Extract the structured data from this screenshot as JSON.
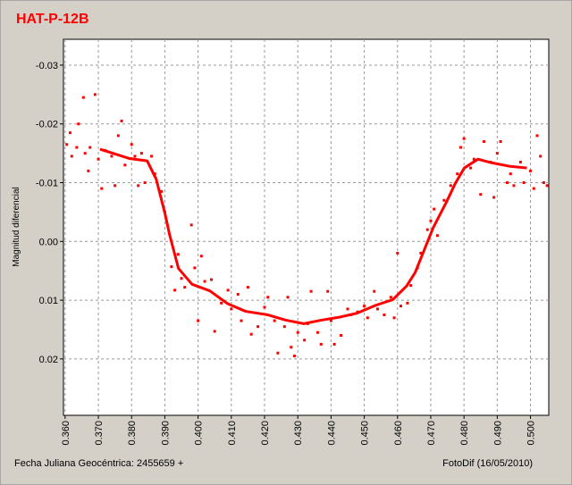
{
  "chart_data": {
    "type": "scatter",
    "title": "HAT-P-12B",
    "ylabel": "Magnitud diferencial",
    "xlabel": "Fecha Juliana Geocéntrica: 2455659 +",
    "footer": "FotoDif (16/05/2010)",
    "xlim": [
      0.3595,
      0.5055
    ],
    "ylim": [
      -0.0344,
      0.0296
    ],
    "y_inverted": true,
    "grid": true,
    "xticks": [
      {
        "value": 0.36,
        "label": "0.360"
      },
      {
        "value": 0.37,
        "label": "0.370"
      },
      {
        "value": 0.38,
        "label": "0.380"
      },
      {
        "value": 0.39,
        "label": "0.390"
      },
      {
        "value": 0.4,
        "label": "0.400"
      },
      {
        "value": 0.41,
        "label": "0.410"
      },
      {
        "value": 0.42,
        "label": "0.420"
      },
      {
        "value": 0.43,
        "label": "0.430"
      },
      {
        "value": 0.44,
        "label": "0.440"
      },
      {
        "value": 0.45,
        "label": "0.450"
      },
      {
        "value": 0.46,
        "label": "0.460"
      },
      {
        "value": 0.47,
        "label": "0.470"
      },
      {
        "value": 0.48,
        "label": "0.480"
      },
      {
        "value": 0.49,
        "label": "0.490"
      },
      {
        "value": 0.5,
        "label": "0.500"
      }
    ],
    "yticks": [
      -0.03,
      -0.02,
      -0.01,
      {
        "value": 0,
        "label": "0.00"
      },
      0.01,
      0.02
    ],
    "series": [
      {
        "style": "points",
        "color": "#ff0000",
        "x": [
          0.3605,
          0.3615,
          0.362,
          0.3635,
          0.364,
          0.3655,
          0.366,
          0.367,
          0.3675,
          0.369,
          0.37,
          0.371,
          0.372,
          0.374,
          0.375,
          0.376,
          0.377,
          0.378,
          0.38,
          0.381,
          0.382,
          0.383,
          0.384,
          0.386,
          0.387,
          0.389,
          0.39,
          0.392,
          0.393,
          0.394,
          0.395,
          0.396,
          0.398,
          0.399,
          0.4,
          0.401,
          0.402,
          0.404,
          0.405,
          0.407,
          0.409,
          0.41,
          0.412,
          0.413,
          0.415,
          0.416,
          0.418,
          0.42,
          0.421,
          0.423,
          0.424,
          0.426,
          0.427,
          0.428,
          0.429,
          0.43,
          0.432,
          0.433,
          0.434,
          0.436,
          0.437,
          0.439,
          0.44,
          0.441,
          0.443,
          0.445,
          0.446,
          0.448,
          0.45,
          0.451,
          0.453,
          0.454,
          0.456,
          0.458,
          0.459,
          0.46,
          0.461,
          0.463,
          0.464,
          0.466,
          0.467,
          0.469,
          0.47,
          0.471,
          0.472,
          0.474,
          0.476,
          0.478,
          0.479,
          0.48,
          0.482,
          0.483,
          0.485,
          0.486,
          0.488,
          0.489,
          0.49,
          0.491,
          0.493,
          0.494,
          0.495,
          0.497,
          0.498,
          0.5,
          0.501,
          0.502,
          0.503,
          0.504,
          0.505
        ],
        "values": [
          -0.0165,
          -0.0185,
          -0.0145,
          -0.016,
          -0.02,
          -0.0245,
          -0.015,
          -0.012,
          -0.016,
          -0.025,
          -0.014,
          -0.009,
          -0.0155,
          -0.0145,
          -0.0095,
          -0.018,
          -0.0205,
          -0.013,
          -0.0165,
          -0.0145,
          -0.0095,
          -0.015,
          -0.01,
          -0.0145,
          -0.0115,
          -0.0085,
          -0.005,
          0.0043,
          0.0083,
          0.0022,
          0.0063,
          0.0078,
          -0.0028,
          0.0045,
          0.0135,
          0.0025,
          0.0068,
          0.0065,
          0.0153,
          0.0105,
          0.0083,
          0.0115,
          0.009,
          0.0135,
          0.0078,
          0.0158,
          0.0145,
          0.0112,
          0.0095,
          0.0135,
          0.019,
          0.0145,
          0.0095,
          0.018,
          0.0195,
          0.0155,
          0.0168,
          0.014,
          0.0085,
          0.0155,
          0.0175,
          0.0085,
          0.0135,
          0.0175,
          0.016,
          0.0115,
          0.0125,
          0.012,
          0.011,
          0.013,
          0.0085,
          0.0115,
          0.0125,
          0.0095,
          0.013,
          0.002,
          0.011,
          0.0105,
          0.0075,
          0.0045,
          0.002,
          -0.002,
          -0.0035,
          -0.0055,
          -0.001,
          -0.007,
          -0.0095,
          -0.0115,
          -0.016,
          -0.0175,
          -0.0125,
          -0.014,
          -0.008,
          -0.017,
          -0.0135,
          -0.0075,
          -0.015,
          -0.017,
          -0.01,
          -0.0115,
          -0.0095,
          -0.0135,
          -0.01,
          -0.012,
          -0.009,
          -0.018,
          -0.0145,
          -0.01,
          -0.0095
        ]
      },
      {
        "style": "line",
        "color": "#ff0000",
        "x": [
          0.3705,
          0.3794,
          0.3847,
          0.3874,
          0.3901,
          0.3914,
          0.3941,
          0.3982,
          0.4035,
          0.4089,
          0.4143,
          0.421,
          0.4264,
          0.4318,
          0.4371,
          0.4425,
          0.4479,
          0.4533,
          0.4586,
          0.4627,
          0.4653,
          0.468,
          0.4707,
          0.4748,
          0.4774,
          0.4801,
          0.4842,
          0.4882,
          0.4936,
          0.4989
        ],
        "values": [
          -0.0157,
          -0.0141,
          -0.0137,
          -0.0106,
          -0.0046,
          -0.0012,
          0.0046,
          0.0073,
          0.0084,
          0.0106,
          0.0119,
          0.0125,
          0.0134,
          0.014,
          0.0134,
          0.0129,
          0.0122,
          0.0109,
          0.0099,
          0.0076,
          0.0053,
          0.0015,
          -0.0023,
          -0.0068,
          -0.0099,
          -0.0125,
          -0.014,
          -0.0134,
          -0.0128,
          -0.0125
        ]
      }
    ]
  }
}
